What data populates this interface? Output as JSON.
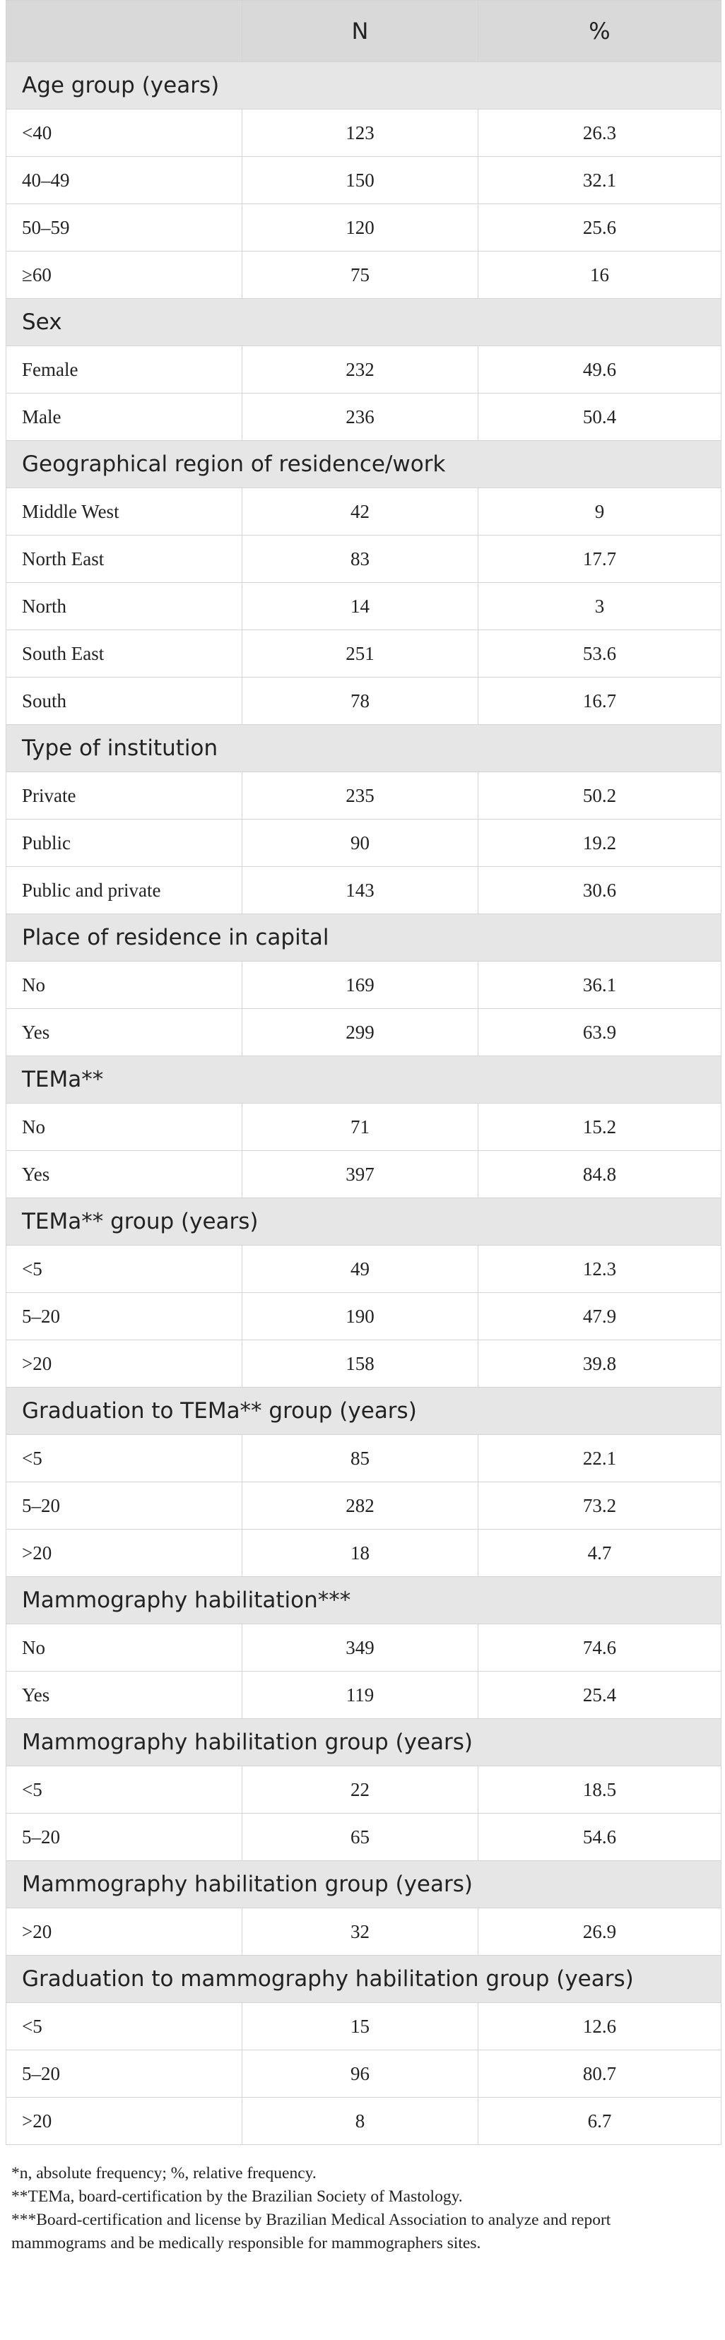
{
  "table": {
    "header": {
      "col1": "",
      "col2": "N",
      "col3": "%"
    },
    "sections": [
      {
        "title": "Age group (years)",
        "rows": [
          {
            "label": "<40",
            "n": "123",
            "pct": "26.3"
          },
          {
            "label": "40–49",
            "n": "150",
            "pct": "32.1"
          },
          {
            "label": "50–59",
            "n": "120",
            "pct": "25.6"
          },
          {
            "label": "≥60",
            "n": "75",
            "pct": "16"
          }
        ]
      },
      {
        "title": "Sex",
        "rows": [
          {
            "label": "Female",
            "n": "232",
            "pct": "49.6"
          },
          {
            "label": "Male",
            "n": "236",
            "pct": "50.4"
          }
        ]
      },
      {
        "title": "Geographical region of residence/work",
        "rows": [
          {
            "label": "Middle West",
            "n": "42",
            "pct": "9"
          },
          {
            "label": "North East",
            "n": "83",
            "pct": "17.7"
          },
          {
            "label": "North",
            "n": "14",
            "pct": "3"
          },
          {
            "label": "South East",
            "n": "251",
            "pct": "53.6"
          },
          {
            "label": "South",
            "n": "78",
            "pct": "16.7"
          }
        ]
      },
      {
        "title": "Type of institution",
        "rows": [
          {
            "label": "Private",
            "n": "235",
            "pct": "50.2"
          },
          {
            "label": "Public",
            "n": "90",
            "pct": "19.2"
          },
          {
            "label": "Public and private",
            "n": "143",
            "pct": "30.6"
          }
        ]
      },
      {
        "title": "Place of residence in capital",
        "rows": [
          {
            "label": "No",
            "n": "169",
            "pct": "36.1"
          },
          {
            "label": "Yes",
            "n": "299",
            "pct": "63.9"
          }
        ]
      },
      {
        "title": "TEMa**",
        "rows": [
          {
            "label": "No",
            "n": "71",
            "pct": "15.2"
          },
          {
            "label": "Yes",
            "n": "397",
            "pct": "84.8"
          }
        ]
      },
      {
        "title": "TEMa** group (years)",
        "rows": [
          {
            "label": "<5",
            "n": "49",
            "pct": "12.3"
          },
          {
            "label": "5–20",
            "n": "190",
            "pct": "47.9"
          },
          {
            "label": ">20",
            "n": "158",
            "pct": "39.8"
          }
        ]
      },
      {
        "title": "Graduation to TEMa** group (years)",
        "rows": [
          {
            "label": "<5",
            "n": "85",
            "pct": "22.1"
          },
          {
            "label": "5–20",
            "n": "282",
            "pct": "73.2"
          },
          {
            "label": ">20",
            "n": "18",
            "pct": "4.7"
          }
        ]
      },
      {
        "title": "Mammography habilitation***",
        "rows": [
          {
            "label": "No",
            "n": "349",
            "pct": "74.6"
          },
          {
            "label": "Yes",
            "n": "119",
            "pct": "25.4"
          }
        ]
      },
      {
        "title": "Mammography habilitation group (years)",
        "rows": [
          {
            "label": "<5",
            "n": "22",
            "pct": "18.5"
          },
          {
            "label": "5–20",
            "n": "65",
            "pct": "54.6"
          }
        ]
      },
      {
        "title": "Mammography habilitation group (years)",
        "rows": [
          {
            "label": ">20",
            "n": "32",
            "pct": "26.9"
          }
        ]
      },
      {
        "title": "Graduation to mammography habilitation group (years)",
        "rows": [
          {
            "label": "<5",
            "n": "15",
            "pct": "12.6"
          },
          {
            "label": "5–20",
            "n": "96",
            "pct": "80.7"
          },
          {
            "label": ">20",
            "n": "8",
            "pct": "6.7"
          }
        ]
      }
    ]
  },
  "footnotes": [
    "*n, absolute frequency; %, relative frequency.",
    "**TEMa, board-certification by the Brazilian Society of Mastology.",
    "***Board-certification and license by Brazilian Medical Association to analyze and report",
    "mammograms and be medically responsible for mammographers sites."
  ]
}
